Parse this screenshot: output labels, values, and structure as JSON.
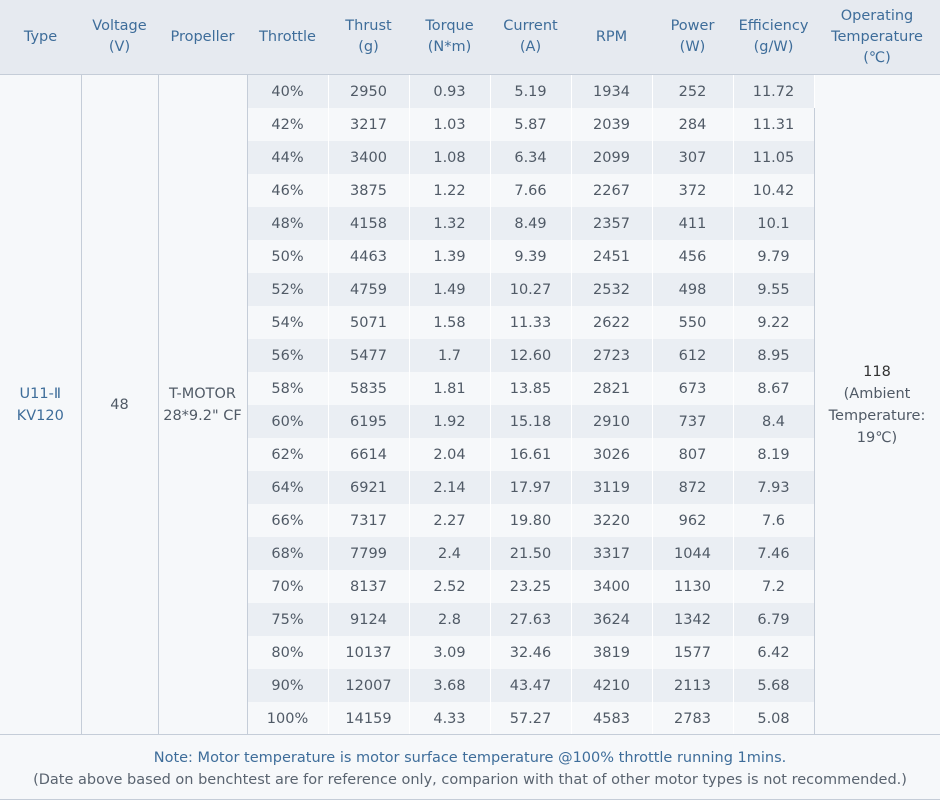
{
  "headers": [
    {
      "line1": "Type",
      "line2": "",
      "line3": ""
    },
    {
      "line1": "Voltage",
      "line2": "(V)",
      "line3": ""
    },
    {
      "line1": "Propeller",
      "line2": "",
      "line3": ""
    },
    {
      "line1": "Throttle",
      "line2": "",
      "line3": ""
    },
    {
      "line1": "Thrust",
      "line2": "(g)",
      "line3": ""
    },
    {
      "line1": "Torque",
      "line2": "(N*m)",
      "line3": ""
    },
    {
      "line1": "Current",
      "line2": "(A)",
      "line3": ""
    },
    {
      "line1": "RPM",
      "line2": "",
      "line3": ""
    },
    {
      "line1": "Power",
      "line2": "(W)",
      "line3": ""
    },
    {
      "line1": "Efficiency",
      "line2": "(g/W)",
      "line3": ""
    },
    {
      "line1": "Operating",
      "line2": "Temperature",
      "line3": "(℃)"
    }
  ],
  "merged": {
    "type_line1": "U11-Ⅱ",
    "type_line2": "KV120",
    "voltage": "48",
    "propeller_line1": "T-MOTOR",
    "propeller_line2": "28*9.2\" CF",
    "op_temp_value": "118",
    "op_temp_line1": "(Ambient",
    "op_temp_line2": "Temperature:",
    "op_temp_line3": "19℃)"
  },
  "rows": [
    [
      "40%",
      "2950",
      "0.93",
      "5.19",
      "1934",
      "252",
      "11.72"
    ],
    [
      "42%",
      "3217",
      "1.03",
      "5.87",
      "2039",
      "284",
      "11.31"
    ],
    [
      "44%",
      "3400",
      "1.08",
      "6.34",
      "2099",
      "307",
      "11.05"
    ],
    [
      "46%",
      "3875",
      "1.22",
      "7.66",
      "2267",
      "372",
      "10.42"
    ],
    [
      "48%",
      "4158",
      "1.32",
      "8.49",
      "2357",
      "411",
      "10.1"
    ],
    [
      "50%",
      "4463",
      "1.39",
      "9.39",
      "2451",
      "456",
      "9.79"
    ],
    [
      "52%",
      "4759",
      "1.49",
      "10.27",
      "2532",
      "498",
      "9.55"
    ],
    [
      "54%",
      "5071",
      "1.58",
      "11.33",
      "2622",
      "550",
      "9.22"
    ],
    [
      "56%",
      "5477",
      "1.7",
      "12.60",
      "2723",
      "612",
      "8.95"
    ],
    [
      "58%",
      "5835",
      "1.81",
      "13.85",
      "2821",
      "673",
      "8.67"
    ],
    [
      "60%",
      "6195",
      "1.92",
      "15.18",
      "2910",
      "737",
      "8.4"
    ],
    [
      "62%",
      "6614",
      "2.04",
      "16.61",
      "3026",
      "807",
      "8.19"
    ],
    [
      "64%",
      "6921",
      "2.14",
      "17.97",
      "3119",
      "872",
      "7.93"
    ],
    [
      "66%",
      "7317",
      "2.27",
      "19.80",
      "3220",
      "962",
      "7.6"
    ],
    [
      "68%",
      "7799",
      "2.4",
      "21.50",
      "3317",
      "1044",
      "7.46"
    ],
    [
      "70%",
      "8137",
      "2.52",
      "23.25",
      "3400",
      "1130",
      "7.2"
    ],
    [
      "75%",
      "9124",
      "2.8",
      "27.63",
      "3624",
      "1342",
      "6.79"
    ],
    [
      "80%",
      "10137",
      "3.09",
      "32.46",
      "3819",
      "1577",
      "6.42"
    ],
    [
      "90%",
      "12007",
      "3.68",
      "43.47",
      "4210",
      "2113",
      "5.68"
    ],
    [
      "100%",
      "14159",
      "4.33",
      "57.27",
      "4583",
      "2783",
      "5.08"
    ]
  ],
  "note": {
    "line1": "Note: Motor temperature is motor surface temperature @100% throttle running 1mins.",
    "line2": "(Date above based on benchtest are for reference only, comparion with that of other motor types is not recommended.)"
  }
}
